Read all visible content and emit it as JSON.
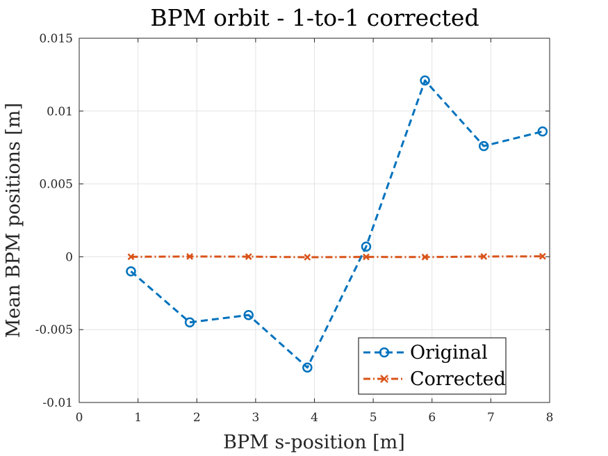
{
  "chart_data": {
    "type": "line",
    "title": "BPM orbit - 1-to-1 corrected",
    "xlabel": "BPM s-position [m]",
    "ylabel": "Mean BPM positions [m]",
    "xlim": [
      0,
      8
    ],
    "ylim": [
      -0.01,
      0.015
    ],
    "xticks": [
      0,
      1,
      2,
      3,
      4,
      5,
      6,
      7,
      8
    ],
    "xtick_labels": [
      "0",
      "1",
      "2",
      "3",
      "4",
      "5",
      "6",
      "7",
      "8"
    ],
    "yticks": [
      -0.01,
      -0.005,
      0,
      0.005,
      0.01,
      0.015
    ],
    "ytick_labels": [
      "-0.01",
      "-0.005",
      "0",
      "0.005",
      "0.01",
      "0.015"
    ],
    "grid": true,
    "legend_position": "bottom-right",
    "series": [
      {
        "name": "Original",
        "color": "#0072BD",
        "marker": "circle",
        "line_style": "dashed",
        "x": [
          0.88,
          1.88,
          2.88,
          3.88,
          4.88,
          5.88,
          6.88,
          7.88
        ],
        "y": [
          -0.001,
          -0.0045,
          -0.004,
          -0.0076,
          0.0007,
          0.0121,
          0.0076,
          0.0086
        ]
      },
      {
        "name": "Corrected",
        "color": "#D95319",
        "marker": "x",
        "line_style": "dash-dot",
        "x": [
          0.88,
          1.88,
          2.88,
          3.88,
          4.88,
          5.88,
          6.88,
          7.88
        ],
        "y": [
          0,
          2e-05,
          1e-05,
          -3e-05,
          -1e-05,
          -2e-05,
          2e-05,
          3e-05
        ]
      }
    ]
  }
}
